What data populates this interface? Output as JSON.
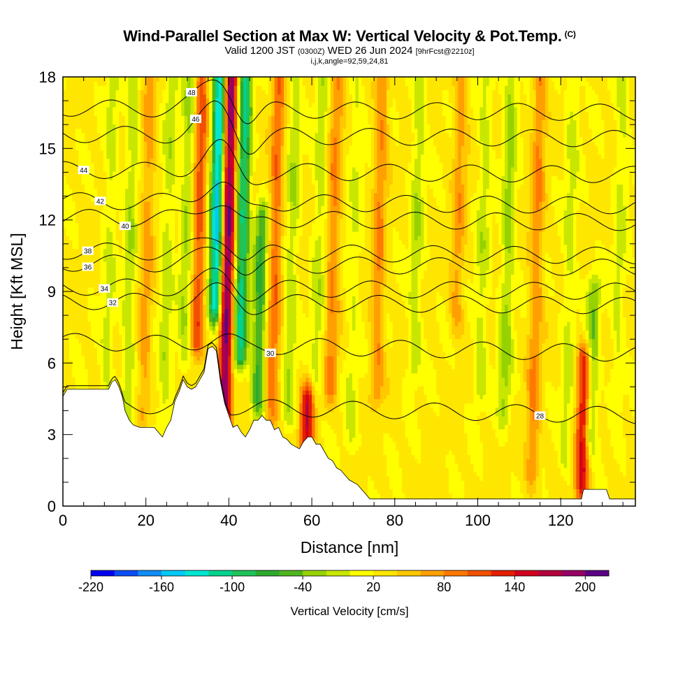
{
  "header": {
    "title": "Wind-Parallel Section at Max W: Vertical Velocity & Pot.Temp.",
    "copyright": "(C)",
    "valid_prefix": "Valid 1200 JST",
    "valid_utc": "(0300Z)",
    "valid_date": "WED 26 Jun 2024",
    "forecast": "[9hrFcst@2210z]",
    "indices": "i,j,k,angle=92,59,24,81"
  },
  "chart_data": {
    "type": "heatmap",
    "xlabel": "Distance [nm]",
    "ylabel": "Height [Kft MSL]",
    "xlim": [
      0,
      138
    ],
    "ylim": [
      0,
      18
    ],
    "x_ticks": [
      0,
      20,
      40,
      60,
      80,
      100,
      120
    ],
    "y_ticks": [
      0,
      3,
      6,
      9,
      12,
      15,
      18
    ],
    "grid": false,
    "colorbar": {
      "label": "Vertical Velocity [cm/s]",
      "min": -220,
      "max": 220,
      "tick_values": [
        -220,
        -160,
        -100,
        -40,
        20,
        80,
        140,
        200
      ],
      "tick_labels": [
        "-220",
        "-160",
        "-100",
        "-40",
        "20",
        "80",
        "140",
        "200"
      ],
      "colors": [
        "#0000f0",
        "#0a4cf5",
        "#0f8df5",
        "#00c8f5",
        "#00e6d2",
        "#00d28c",
        "#1ec35a",
        "#2daa2d",
        "#50b41e",
        "#96d200",
        "#c8e600",
        "#ffff00",
        "#ffe600",
        "#ffc800",
        "#ffa000",
        "#ff7800",
        "#f05000",
        "#e61e00",
        "#d2001e",
        "#b4003c",
        "#960064",
        "#5a0082"
      ]
    },
    "velocity_field": {
      "background_value": 25,
      "cores": [
        {
          "x": 39.5,
          "y_from": 3.2,
          "y_to": 18,
          "value": 180
        },
        {
          "x": 36.8,
          "y_from": 8.5,
          "y_to": 18,
          "value": -175
        },
        {
          "x": 43.0,
          "y_from": 6.5,
          "y_to": 18,
          "value": -130
        },
        {
          "x": 47.5,
          "y_from": 4.5,
          "y_to": 12,
          "value": -90
        },
        {
          "x": 32.5,
          "y_from": 7.0,
          "y_to": 18,
          "value": 85
        },
        {
          "x": 59.5,
          "y_from": 2.8,
          "y_to": 4.4,
          "value": 125
        },
        {
          "x": 51.0,
          "y_from": 4.0,
          "y_to": 18,
          "value": 70
        },
        {
          "x": 29.5,
          "y_from": 6.5,
          "y_to": 18,
          "value": -45
        },
        {
          "x": 25.0,
          "y_from": 3.5,
          "y_to": 18,
          "value": -35
        },
        {
          "x": 20.0,
          "y_from": 4.0,
          "y_to": 18,
          "value": 45
        },
        {
          "x": 16.0,
          "y_from": 3.5,
          "y_to": 18,
          "value": -40
        },
        {
          "x": 11.0,
          "y_from": 5.0,
          "y_to": 18,
          "value": -30
        },
        {
          "x": 55.0,
          "y_from": 4.0,
          "y_to": 18,
          "value": -40
        },
        {
          "x": 61.5,
          "y_from": 5.5,
          "y_to": 18,
          "value": -35
        },
        {
          "x": 65.0,
          "y_from": 5.0,
          "y_to": 18,
          "value": 55
        },
        {
          "x": 70.0,
          "y_from": 3.0,
          "y_to": 18,
          "value": -25
        },
        {
          "x": 76.0,
          "y_from": 5.0,
          "y_to": 18,
          "value": 55
        },
        {
          "x": 85.0,
          "y_from": 6.0,
          "y_to": 18,
          "value": -40
        },
        {
          "x": 95.0,
          "y_from": 8.0,
          "y_to": 18,
          "value": 45
        },
        {
          "x": 101.0,
          "y_from": 5.0,
          "y_to": 18,
          "value": -35
        },
        {
          "x": 107.0,
          "y_from": 4.0,
          "y_to": 18,
          "value": -50
        },
        {
          "x": 114.0,
          "y_from": 1.5,
          "y_to": 18,
          "value": 55
        },
        {
          "x": 122.0,
          "y_from": 2.0,
          "y_to": 18,
          "value": -30
        },
        {
          "x": 126.0,
          "y_from": 1.0,
          "y_to": 6.0,
          "value": 120
        },
        {
          "x": 128.0,
          "y_from": 3.0,
          "y_to": 9.0,
          "value": -60
        },
        {
          "x": 134.0,
          "y_from": 5.0,
          "y_to": 18,
          "value": -30
        }
      ]
    },
    "terrain": [
      [
        0,
        4.6
      ],
      [
        1,
        4.9
      ],
      [
        2,
        4.9
      ],
      [
        5,
        4.9
      ],
      [
        10,
        4.9
      ],
      [
        11,
        4.9
      ],
      [
        11.8,
        5.2
      ],
      [
        12.6,
        5.3
      ],
      [
        13.5,
        5.0
      ],
      [
        14.3,
        4.6
      ],
      [
        15,
        4.0
      ],
      [
        16,
        3.6
      ],
      [
        17,
        3.4
      ],
      [
        18.5,
        3.3
      ],
      [
        20,
        3.3
      ],
      [
        21,
        3.3
      ],
      [
        22,
        3.3
      ],
      [
        23,
        3.1
      ],
      [
        24,
        2.9
      ],
      [
        25,
        3.3
      ],
      [
        26,
        3.6
      ],
      [
        27,
        4.4
      ],
      [
        28,
        4.8
      ],
      [
        29,
        5.3
      ],
      [
        30,
        5.0
      ],
      [
        31,
        4.9
      ],
      [
        32,
        5.0
      ],
      [
        33,
        5.3
      ],
      [
        34,
        5.6
      ],
      [
        35,
        6.6
      ],
      [
        36,
        6.7
      ],
      [
        37,
        6.5
      ],
      [
        38,
        5.2
      ],
      [
        39,
        4.3
      ],
      [
        40,
        3.8
      ],
      [
        41,
        3.3
      ],
      [
        42,
        3.4
      ],
      [
        43,
        3.1
      ],
      [
        44,
        2.9
      ],
      [
        45,
        3.2
      ],
      [
        46,
        3.6
      ],
      [
        47,
        3.6
      ],
      [
        48,
        3.8
      ],
      [
        49,
        3.6
      ],
      [
        50,
        3.6
      ],
      [
        51,
        3.2
      ],
      [
        52,
        3.3
      ],
      [
        53,
        2.9
      ],
      [
        54,
        2.8
      ],
      [
        55,
        2.6
      ],
      [
        56,
        2.5
      ],
      [
        57,
        2.4
      ],
      [
        58,
        2.7
      ],
      [
        59,
        2.9
      ],
      [
        60,
        2.9
      ],
      [
        61,
        2.6
      ],
      [
        62,
        2.6
      ],
      [
        63,
        2.3
      ],
      [
        64,
        2.0
      ],
      [
        65,
        1.9
      ],
      [
        66,
        1.6
      ],
      [
        67,
        1.5
      ],
      [
        68,
        1.3
      ],
      [
        69,
        1.1
      ],
      [
        70,
        1.0
      ],
      [
        71,
        0.9
      ],
      [
        72,
        0.7
      ],
      [
        73,
        0.5
      ],
      [
        74,
        0.3
      ],
      [
        125,
        0.3
      ],
      [
        125.5,
        0.7
      ],
      [
        131,
        0.7
      ],
      [
        131.8,
        0.3
      ],
      [
        138,
        0.3
      ]
    ],
    "theta_contours": [
      {
        "label": "28",
        "base": 4.3,
        "label_x": 115
      },
      {
        "label": "30",
        "base": 6.9,
        "label_x": 50
      },
      {
        "label": "32",
        "base": 8.6,
        "label_x": 12
      },
      {
        "label": "34",
        "base": 9.2,
        "label_x": 10
      },
      {
        "label": "36",
        "base": 10.2,
        "label_x": 6
      },
      {
        "label": "38",
        "base": 10.7,
        "label_x": 6
      },
      {
        "label": "40",
        "base": 12.1,
        "label_x": 15
      },
      {
        "label": "42",
        "base": 12.8,
        "label_x": 9
      },
      {
        "label": "44",
        "base": 14.1,
        "label_x": 5
      },
      {
        "label": "46",
        "base": 15.6,
        "label_x": 32
      },
      {
        "label": "48",
        "base": 16.7,
        "label_x": 31
      }
    ]
  },
  "colors": {
    "terrain": "#ffffff",
    "contour": "#000000",
    "frame": "#000000"
  }
}
